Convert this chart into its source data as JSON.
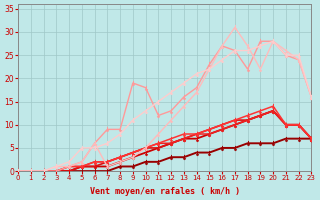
{
  "xlabel": "Vent moyen/en rafales ( km/h )",
  "bg_color": "#c0e8e8",
  "grid_color": "#a0c8c8",
  "xlim": [
    0,
    23
  ],
  "ylim": [
    0,
    36
  ],
  "xticks": [
    0,
    1,
    2,
    3,
    4,
    5,
    6,
    7,
    8,
    9,
    10,
    11,
    12,
    13,
    14,
    15,
    16,
    17,
    18,
    19,
    20,
    21,
    22,
    23
  ],
  "yticks": [
    0,
    5,
    10,
    15,
    20,
    25,
    30,
    35
  ],
  "series": [
    {
      "x": [
        0,
        1,
        2,
        3,
        4,
        5,
        6,
        7,
        8,
        9,
        10,
        11,
        12,
        13,
        14,
        15,
        16,
        17,
        18,
        19,
        20,
        21,
        22,
        23
      ],
      "y": [
        0,
        0,
        0,
        0,
        0,
        0,
        0,
        0,
        1,
        1,
        2,
        2,
        3,
        3,
        4,
        4,
        5,
        5,
        6,
        6,
        6,
        7,
        7,
        7
      ],
      "color": "#990000",
      "lw": 1.4
    },
    {
      "x": [
        0,
        1,
        2,
        3,
        4,
        5,
        6,
        7,
        8,
        9,
        10,
        11,
        12,
        13,
        14,
        15,
        16,
        17,
        18,
        19,
        20,
        21,
        22,
        23
      ],
      "y": [
        0,
        0,
        0,
        0,
        0,
        1,
        1,
        1,
        2,
        3,
        4,
        5,
        6,
        7,
        7,
        8,
        9,
        10,
        11,
        12,
        13,
        10,
        10,
        7
      ],
      "color": "#cc0000",
      "lw": 1.3
    },
    {
      "x": [
        0,
        1,
        2,
        3,
        4,
        5,
        6,
        7,
        8,
        9,
        10,
        11,
        12,
        13,
        14,
        15,
        16,
        17,
        18,
        19,
        20,
        21,
        22,
        23
      ],
      "y": [
        0,
        0,
        0,
        0,
        0,
        1,
        1,
        2,
        3,
        4,
        5,
        5,
        6,
        7,
        8,
        9,
        10,
        11,
        11,
        12,
        13,
        10,
        10,
        7
      ],
      "color": "#dd1111",
      "lw": 1.2
    },
    {
      "x": [
        0,
        1,
        2,
        3,
        4,
        5,
        6,
        7,
        8,
        9,
        10,
        11,
        12,
        13,
        14,
        15,
        16,
        17,
        18,
        19,
        20,
        21,
        22,
        23
      ],
      "y": [
        0,
        0,
        0,
        0,
        1,
        1,
        2,
        2,
        3,
        4,
        5,
        6,
        6,
        7,
        8,
        8,
        9,
        10,
        11,
        12,
        13,
        10,
        10,
        7
      ],
      "color": "#ee2222",
      "lw": 1.1
    },
    {
      "x": [
        0,
        1,
        2,
        3,
        4,
        5,
        6,
        7,
        8,
        9,
        10,
        11,
        12,
        13,
        14,
        15,
        16,
        17,
        18,
        19,
        20,
        21,
        22,
        23
      ],
      "y": [
        0,
        0,
        0,
        0,
        1,
        1,
        2,
        2,
        3,
        4,
        5,
        6,
        7,
        8,
        8,
        9,
        10,
        11,
        12,
        13,
        14,
        10,
        10,
        7
      ],
      "color": "#ff3333",
      "lw": 1.1
    },
    {
      "x": [
        0,
        1,
        2,
        3,
        4,
        5,
        6,
        7,
        8,
        9,
        10,
        11,
        12,
        13,
        14,
        15,
        16,
        17,
        18,
        19,
        20,
        21,
        22,
        23
      ],
      "y": [
        0,
        0,
        0,
        0,
        1,
        2,
        6,
        9,
        9,
        19,
        18,
        12,
        13,
        16,
        18,
        23,
        27,
        26,
        22,
        28,
        28,
        25,
        24,
        16
      ],
      "color": "#ff9999",
      "lw": 1.0
    },
    {
      "x": [
        0,
        1,
        2,
        3,
        4,
        5,
        6,
        7,
        8,
        9,
        10,
        11,
        12,
        13,
        14,
        15,
        16,
        17,
        18,
        19,
        20,
        21,
        22,
        23
      ],
      "y": [
        0,
        0,
        0,
        1,
        1,
        2,
        6,
        1,
        2,
        3,
        5,
        8,
        11,
        14,
        17,
        22,
        27,
        31,
        27,
        22,
        28,
        26,
        24,
        16
      ],
      "color": "#ffbbbb",
      "lw": 1.0
    },
    {
      "x": [
        0,
        1,
        2,
        3,
        4,
        5,
        6,
        7,
        8,
        9,
        10,
        11,
        12,
        13,
        14,
        15,
        16,
        17,
        18,
        19,
        20,
        21,
        22,
        23
      ],
      "y": [
        0,
        0,
        0,
        1,
        2,
        5,
        5,
        6,
        8,
        11,
        13,
        15,
        17,
        19,
        21,
        22,
        24,
        26,
        26,
        27,
        28,
        25,
        25,
        16
      ],
      "color": "#ffcccc",
      "lw": 1.0
    }
  ]
}
